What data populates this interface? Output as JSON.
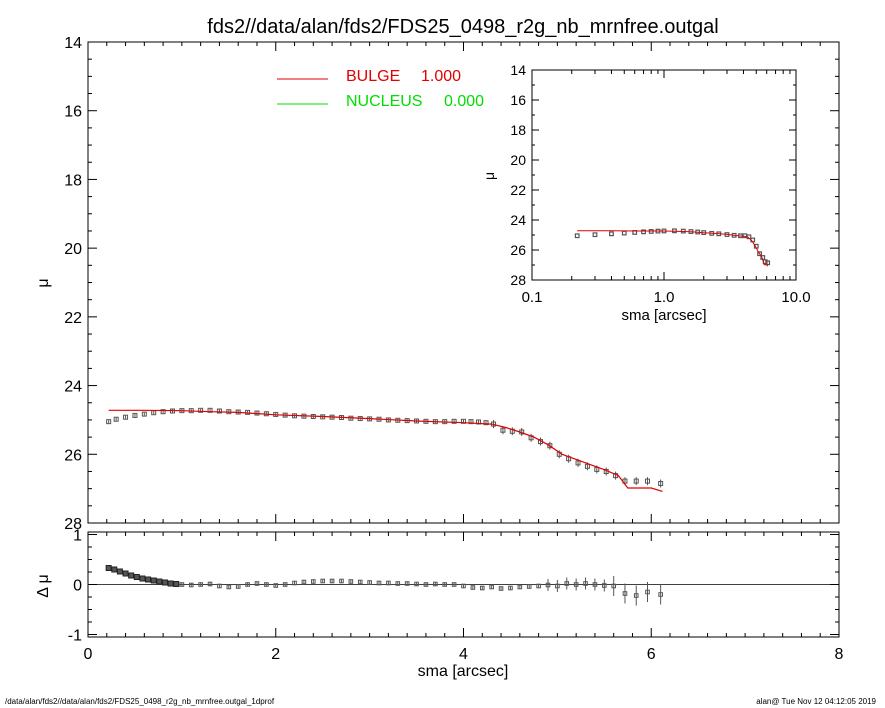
{
  "page": {
    "title": "fds2//data/alan/fds2/FDS25_0498_r2g_nb_mrnfree.outgal",
    "footer_left": "/data/alan/fds2//data/alan/fds2/FDS25_0498_r2g_nb_mrnfree.outgal_1dprof",
    "footer_right": "alan@  Tue Nov 12 04:12:05 2019"
  },
  "colors": {
    "bulge": "#e00000",
    "nucleus": "#00dd00",
    "data": "#555555",
    "axis": "#000000"
  },
  "chart_data": [
    {
      "id": "main",
      "type": "line",
      "xlabel": "",
      "ylabel": "μ",
      "xlim": [
        0,
        8
      ],
      "ylim": [
        28,
        14
      ],
      "x_ticks": [
        0,
        2,
        4,
        6,
        8
      ],
      "y_ticks": [
        14,
        16,
        18,
        20,
        22,
        24,
        26,
        28
      ],
      "legend_position": "top-center",
      "legend": [
        {
          "name": "BULGE",
          "value": "1.000",
          "color": "#e00000"
        },
        {
          "name": "NUCLEUS",
          "value": "0.000",
          "color": "#00dd00"
        }
      ],
      "series": [
        {
          "name": "BULGE",
          "type": "line",
          "x": [
            0.22,
            0.6,
            1.0,
            1.3,
            1.6,
            2.0,
            2.5,
            3.0,
            3.5,
            4.0,
            4.3,
            4.45,
            4.6,
            4.75,
            4.9,
            5.05,
            5.2,
            5.35,
            5.5,
            5.65,
            5.75,
            5.85,
            6.0,
            6.12
          ],
          "y": [
            24.72,
            24.72,
            24.73,
            24.76,
            24.78,
            24.85,
            24.9,
            24.96,
            25.03,
            25.08,
            25.12,
            25.22,
            25.35,
            25.5,
            25.72,
            26.0,
            26.15,
            26.3,
            26.45,
            26.62,
            26.98,
            26.98,
            26.98,
            27.08
          ]
        },
        {
          "name": "data",
          "type": "scatter",
          "x": [
            0.22,
            0.3,
            0.4,
            0.5,
            0.6,
            0.7,
            0.8,
            0.9,
            1.0,
            1.1,
            1.2,
            1.3,
            1.4,
            1.5,
            1.6,
            1.7,
            1.8,
            1.9,
            2.0,
            2.1,
            2.2,
            2.3,
            2.4,
            2.5,
            2.6,
            2.7,
            2.8,
            2.9,
            3.0,
            3.1,
            3.2,
            3.3,
            3.4,
            3.5,
            3.6,
            3.7,
            3.8,
            3.9,
            4.0,
            4.08,
            4.16,
            4.24,
            4.32,
            4.42,
            4.52,
            4.62,
            4.72,
            4.82,
            4.92,
            5.02,
            5.12,
            5.22,
            5.32,
            5.42,
            5.52,
            5.62,
            5.72,
            5.84,
            5.96,
            6.1
          ],
          "y": [
            25.05,
            24.98,
            24.92,
            24.87,
            24.83,
            24.79,
            24.76,
            24.74,
            24.73,
            24.73,
            24.72,
            24.72,
            24.74,
            24.76,
            24.77,
            24.78,
            24.8,
            24.82,
            24.84,
            24.86,
            24.88,
            24.89,
            24.9,
            24.91,
            24.92,
            24.93,
            24.95,
            24.96,
            24.97,
            24.98,
            25.0,
            25.01,
            25.02,
            25.03,
            25.04,
            25.05,
            25.05,
            25.04,
            25.04,
            25.05,
            25.06,
            25.08,
            25.12,
            25.3,
            25.33,
            25.35,
            25.52,
            25.63,
            25.75,
            26.0,
            26.13,
            26.25,
            26.35,
            26.44,
            26.5,
            26.62,
            26.78,
            26.78,
            26.78,
            26.85
          ]
        }
      ]
    },
    {
      "id": "inset",
      "type": "line",
      "xlabel": "sma [arcsec]",
      "ylabel": "μ",
      "x_scale": "log",
      "xlim": [
        0.1,
        10.0
      ],
      "ylim": [
        28,
        14
      ],
      "x_ticks": [
        0.1,
        1.0,
        10.0
      ],
      "x_tick_labels": [
        "0.1",
        "1.0",
        "10.0"
      ],
      "y_ticks": [
        14,
        16,
        18,
        20,
        22,
        24,
        26,
        28
      ],
      "series": [
        {
          "name": "BULGE",
          "type": "line",
          "x": [
            0.22,
            0.4,
            0.7,
            1.0,
            1.3,
            1.6,
            2.0,
            2.5,
            3.0,
            3.5,
            4.0,
            4.3,
            4.6,
            4.9,
            5.2,
            5.5,
            5.75,
            6.0,
            6.12
          ],
          "y": [
            24.72,
            24.72,
            24.73,
            24.73,
            24.76,
            24.78,
            24.85,
            24.9,
            24.96,
            25.03,
            25.08,
            25.12,
            25.35,
            25.72,
            26.15,
            26.45,
            26.98,
            26.98,
            27.08
          ]
        },
        {
          "name": "data",
          "type": "scatter",
          "x": [
            0.22,
            0.3,
            0.4,
            0.5,
            0.6,
            0.7,
            0.8,
            0.9,
            1.0,
            1.2,
            1.4,
            1.6,
            1.8,
            2.0,
            2.3,
            2.6,
            3.0,
            3.4,
            3.8,
            4.1,
            4.4,
            4.7,
            5.0,
            5.3,
            5.6,
            5.84,
            6.1
          ],
          "y": [
            25.05,
            24.98,
            24.92,
            24.87,
            24.83,
            24.79,
            24.76,
            24.74,
            24.73,
            24.72,
            24.74,
            24.77,
            24.8,
            24.84,
            24.89,
            24.92,
            24.97,
            25.02,
            25.05,
            25.05,
            25.12,
            25.33,
            25.75,
            26.25,
            26.5,
            26.78,
            26.85
          ]
        }
      ]
    },
    {
      "id": "residual",
      "type": "scatter",
      "xlabel": "sma [arcsec]",
      "ylabel": "Δ μ",
      "xlim": [
        0,
        8
      ],
      "ylim": [
        -1.05,
        1.05
      ],
      "x_ticks": [
        0,
        2,
        4,
        6,
        8
      ],
      "y_ticks": [
        -1,
        0,
        1
      ],
      "zero_line": true,
      "series": [
        {
          "name": "residual",
          "x": [
            0.22,
            0.28,
            0.34,
            0.4,
            0.46,
            0.52,
            0.58,
            0.64,
            0.7,
            0.76,
            0.82,
            0.88,
            0.94,
            1.0,
            1.1,
            1.2,
            1.3,
            1.4,
            1.5,
            1.6,
            1.7,
            1.8,
            1.9,
            2.0,
            2.1,
            2.2,
            2.3,
            2.4,
            2.5,
            2.6,
            2.7,
            2.8,
            2.9,
            3.0,
            3.1,
            3.2,
            3.3,
            3.4,
            3.5,
            3.6,
            3.7,
            3.8,
            3.9,
            4.0,
            4.1,
            4.2,
            4.3,
            4.4,
            4.5,
            4.6,
            4.7,
            4.8,
            4.9,
            5.0,
            5.1,
            5.2,
            5.3,
            5.4,
            5.5,
            5.6,
            5.72,
            5.84,
            5.96,
            6.1
          ],
          "y": [
            0.33,
            0.3,
            0.26,
            0.22,
            0.18,
            0.15,
            0.12,
            0.1,
            0.08,
            0.06,
            0.04,
            0.02,
            0.01,
            0.0,
            -0.01,
            0.0,
            0.01,
            -0.03,
            -0.05,
            -0.04,
            0.0,
            0.02,
            0.0,
            -0.02,
            0.0,
            0.03,
            0.05,
            0.06,
            0.07,
            0.07,
            0.07,
            0.06,
            0.05,
            0.04,
            0.03,
            0.03,
            0.02,
            0.02,
            0.01,
            0.0,
            0.01,
            0.0,
            0.0,
            -0.03,
            -0.06,
            -0.07,
            -0.05,
            -0.08,
            -0.07,
            -0.05,
            -0.04,
            -0.03,
            -0.01,
            -0.03,
            0.02,
            0.0,
            0.02,
            0.0,
            -0.02,
            -0.03,
            -0.18,
            -0.22,
            -0.15,
            -0.2
          ]
        }
      ]
    }
  ]
}
